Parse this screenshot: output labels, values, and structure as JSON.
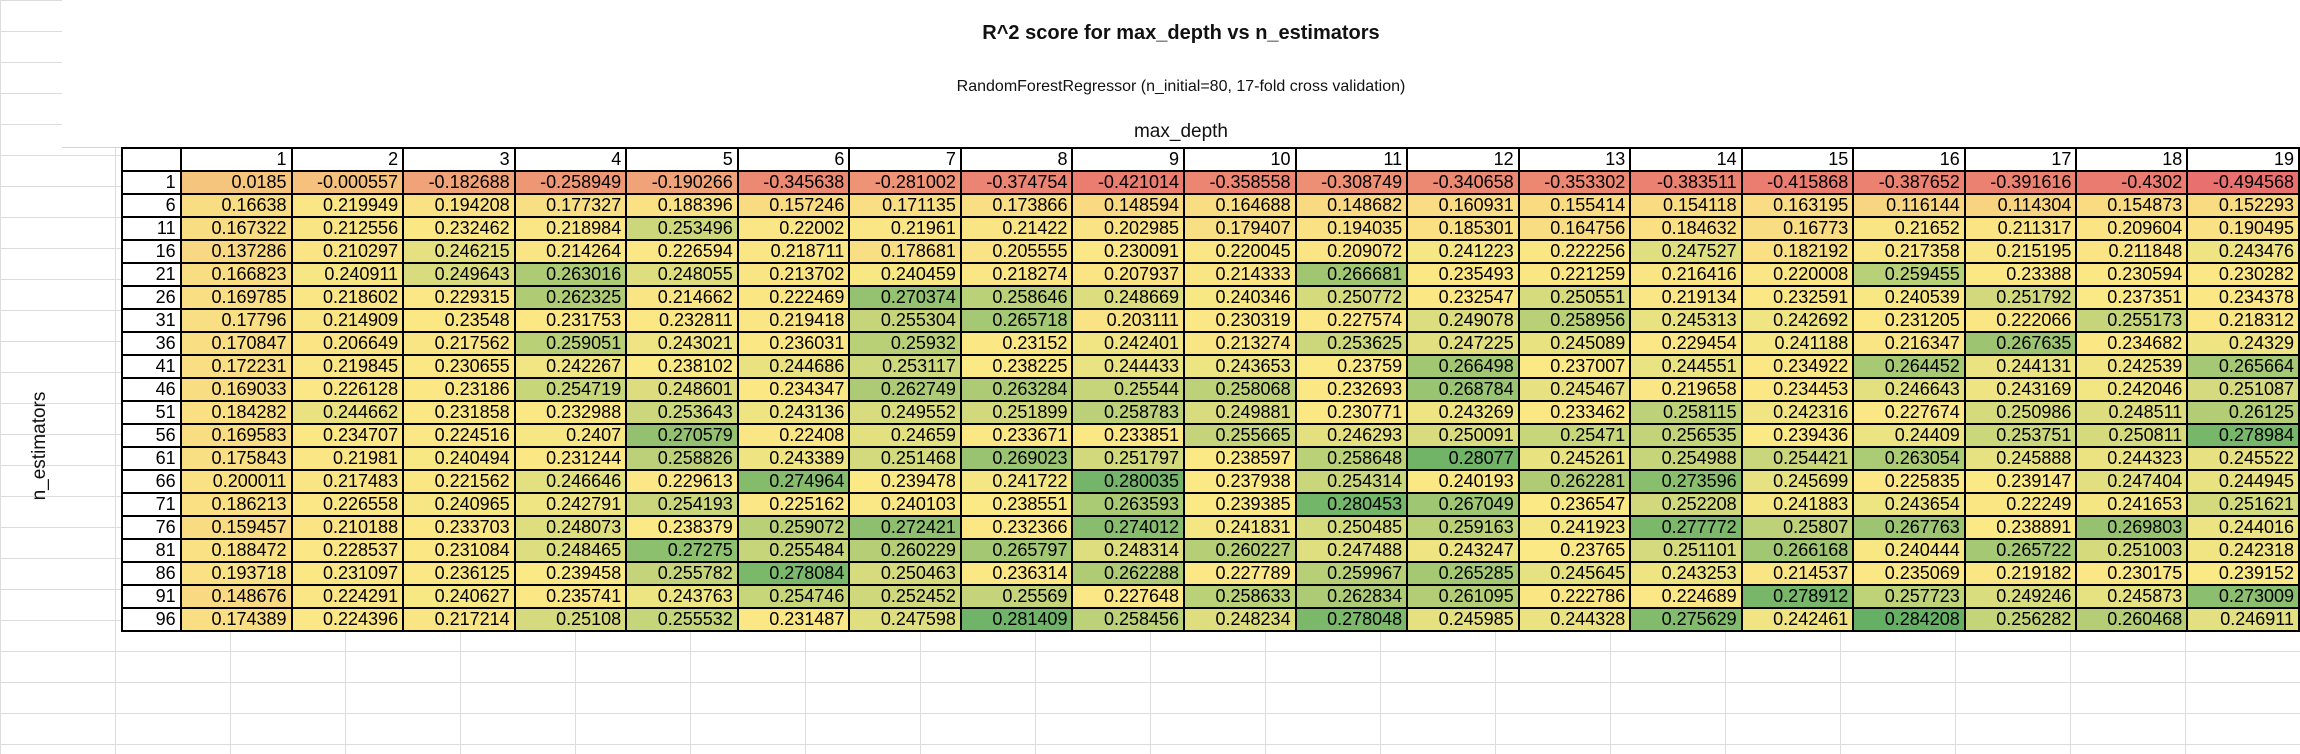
{
  "chart_data": {
    "type": "heatmap",
    "title": "R^2 score for max_depth vs n_estimators",
    "subtitle": "RandomForestRegressor (n_initial=80, 17-fold cross validation)",
    "xlabel": "max_depth",
    "ylabel": "n_estimators",
    "x": [
      1,
      2,
      3,
      4,
      5,
      6,
      7,
      8,
      9,
      10,
      11,
      12,
      13,
      14,
      15,
      16,
      17,
      18,
      19
    ],
    "y": [
      1,
      6,
      11,
      16,
      21,
      26,
      31,
      36,
      41,
      46,
      51,
      56,
      61,
      66,
      71,
      76,
      81,
      86,
      91,
      96
    ],
    "values": [
      [
        0.0185,
        -0.000557,
        -0.182688,
        -0.258949,
        -0.190266,
        -0.345638,
        -0.281002,
        -0.374754,
        -0.421014,
        -0.358558,
        -0.308749,
        -0.340658,
        -0.353302,
        -0.383511,
        -0.415868,
        -0.387652,
        -0.391616,
        -0.4302,
        -0.494568
      ],
      [
        0.16638,
        0.219949,
        0.194208,
        0.177327,
        0.188396,
        0.157246,
        0.171135,
        0.173866,
        0.148594,
        0.164688,
        0.148682,
        0.160931,
        0.155414,
        0.154118,
        0.163195,
        0.116144,
        0.114304,
        0.154873,
        0.152293
      ],
      [
        0.167322,
        0.212556,
        0.232462,
        0.218984,
        0.253496,
        0.22002,
        0.21961,
        0.21422,
        0.202985,
        0.179407,
        0.194035,
        0.185301,
        0.164756,
        0.184632,
        0.16773,
        0.21652,
        0.211317,
        0.209604,
        0.190495
      ],
      [
        0.137286,
        0.210297,
        0.246215,
        0.214264,
        0.226594,
        0.218711,
        0.178681,
        0.205555,
        0.230091,
        0.220045,
        0.209072,
        0.241223,
        0.222256,
        0.247527,
        0.182192,
        0.217358,
        0.215195,
        0.211848,
        0.243476
      ],
      [
        0.166823,
        0.240911,
        0.249643,
        0.263016,
        0.248055,
        0.213702,
        0.240459,
        0.218274,
        0.207937,
        0.214333,
        0.266681,
        0.235493,
        0.221259,
        0.216416,
        0.220008,
        0.259455,
        0.23388,
        0.230594,
        0.230282
      ],
      [
        0.169785,
        0.218602,
        0.229315,
        0.262325,
        0.214662,
        0.222469,
        0.270374,
        0.258646,
        0.248669,
        0.240346,
        0.250772,
        0.232547,
        0.250551,
        0.219134,
        0.232591,
        0.240539,
        0.251792,
        0.237351,
        0.234378
      ],
      [
        0.17796,
        0.214909,
        0.23548,
        0.231753,
        0.232811,
        0.219418,
        0.255304,
        0.265718,
        0.203111,
        0.230319,
        0.227574,
        0.249078,
        0.258956,
        0.245313,
        0.242692,
        0.231205,
        0.222066,
        0.255173,
        0.218312
      ],
      [
        0.170847,
        0.206649,
        0.217562,
        0.259051,
        0.243021,
        0.236031,
        0.25932,
        0.23152,
        0.242401,
        0.213274,
        0.253625,
        0.247225,
        0.245089,
        0.229454,
        0.241188,
        0.216347,
        0.267635,
        0.234682,
        0.24329
      ],
      [
        0.172231,
        0.219845,
        0.230655,
        0.242267,
        0.238102,
        0.244686,
        0.253117,
        0.238225,
        0.244433,
        0.243653,
        0.23759,
        0.266498,
        0.237007,
        0.244551,
        0.234922,
        0.264452,
        0.244131,
        0.242539,
        0.265664
      ],
      [
        0.169033,
        0.226128,
        0.23186,
        0.254719,
        0.248601,
        0.234347,
        0.262749,
        0.263284,
        0.25544,
        0.258068,
        0.232693,
        0.268784,
        0.245467,
        0.219658,
        0.234453,
        0.246643,
        0.243169,
        0.242046,
        0.251087
      ],
      [
        0.184282,
        0.244662,
        0.231858,
        0.232988,
        0.253643,
        0.243136,
        0.249552,
        0.251899,
        0.258783,
        0.249881,
        0.230771,
        0.243269,
        0.233462,
        0.258115,
        0.242316,
        0.227674,
        0.250986,
        0.248511,
        0.26125
      ],
      [
        0.169583,
        0.234707,
        0.224516,
        0.2407,
        0.270579,
        0.22408,
        0.24659,
        0.233671,
        0.233851,
        0.255665,
        0.246293,
        0.250091,
        0.25471,
        0.256535,
        0.239436,
        0.24409,
        0.253751,
        0.250811,
        0.278984
      ],
      [
        0.175843,
        0.21981,
        0.240494,
        0.231244,
        0.258826,
        0.243389,
        0.251468,
        0.269023,
        0.251797,
        0.238597,
        0.258648,
        0.28077,
        0.245261,
        0.254988,
        0.254421,
        0.263054,
        0.245888,
        0.244323,
        0.245522
      ],
      [
        0.200011,
        0.217483,
        0.221562,
        0.246646,
        0.229613,
        0.274964,
        0.239478,
        0.241722,
        0.280035,
        0.237938,
        0.254314,
        0.240193,
        0.262281,
        0.273596,
        0.245699,
        0.225835,
        0.239147,
        0.247404,
        0.244945
      ],
      [
        0.186213,
        0.226558,
        0.240965,
        0.242791,
        0.254193,
        0.225162,
        0.240103,
        0.238551,
        0.263593,
        0.239385,
        0.280453,
        0.267049,
        0.236547,
        0.252208,
        0.241883,
        0.243654,
        0.22249,
        0.241653,
        0.251621
      ],
      [
        0.159457,
        0.210188,
        0.233703,
        0.248073,
        0.238379,
        0.259072,
        0.272421,
        0.232366,
        0.274012,
        0.241831,
        0.250485,
        0.259163,
        0.241923,
        0.277772,
        0.25807,
        0.267763,
        0.238891,
        0.269803,
        0.244016
      ],
      [
        0.188472,
        0.228537,
        0.231084,
        0.248465,
        0.27275,
        0.255484,
        0.260229,
        0.265797,
        0.248314,
        0.260227,
        0.247488,
        0.243247,
        0.23765,
        0.251101,
        0.266168,
        0.240444,
        0.265722,
        0.251003,
        0.242318
      ],
      [
        0.193718,
        0.231097,
        0.236125,
        0.239458,
        0.255782,
        0.278084,
        0.250463,
        0.236314,
        0.262288,
        0.227789,
        0.259967,
        0.265285,
        0.245645,
        0.243253,
        0.214537,
        0.235069,
        0.219182,
        0.230175,
        0.239152
      ],
      [
        0.148676,
        0.224291,
        0.240627,
        0.235741,
        0.243763,
        0.254746,
        0.252452,
        0.25569,
        0.227648,
        0.258633,
        0.262834,
        0.261095,
        0.222786,
        0.224689,
        0.278912,
        0.257723,
        0.249246,
        0.245873,
        0.273009
      ],
      [
        0.174389,
        0.224396,
        0.217214,
        0.25108,
        0.255532,
        0.231487,
        0.247598,
        0.281409,
        0.258456,
        0.248234,
        0.278048,
        0.245985,
        0.244328,
        0.275629,
        0.242461,
        0.284208,
        0.256282,
        0.260468,
        0.246911
      ]
    ],
    "colorscale": {
      "low": "#e8706e",
      "mid": "#fbe985",
      "high": "#66b066"
    },
    "grid": true
  }
}
